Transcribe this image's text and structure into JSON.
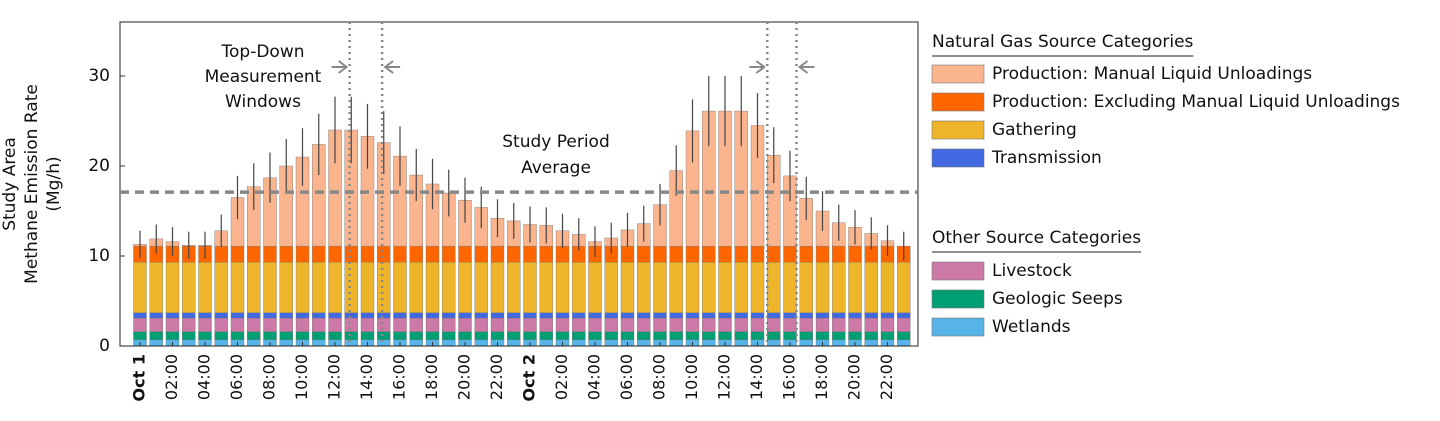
{
  "chart_data": {
    "type": "stacked_bar",
    "y_label": [
      "Study Area",
      "Methane Emission Rate",
      "(Mg/h)"
    ],
    "categories": [
      "Oct 1",
      null,
      "02:00",
      null,
      "04:00",
      null,
      "06:00",
      null,
      "08:00",
      null,
      "10:00",
      null,
      "12:00",
      null,
      "14:00",
      null,
      "16:00",
      null,
      "18:00",
      null,
      "20:00",
      null,
      "22:00",
      null,
      "Oct 2",
      null,
      "02:00",
      null,
      "04:00",
      null,
      "06:00",
      null,
      "08:00",
      null,
      "10:00",
      null,
      "12:00",
      null,
      "14:00",
      null,
      "16:00",
      null,
      "18:00",
      null,
      "20:00",
      null,
      "22:00",
      null
    ],
    "ylim": [
      0,
      36
    ],
    "yticks": [
      0,
      10,
      20,
      30
    ],
    "legend_groups": [
      "Natural Gas Source Categories",
      "Other Source Categories"
    ],
    "series": [
      {
        "name": "Production: Manual Liquid Unloadings",
        "color": "#fbb58e",
        "group": 0,
        "values": [
          0.2,
          0.8,
          0.5,
          0.1,
          0.1,
          1.7,
          5.4,
          6.6,
          7.6,
          8.9,
          9.9,
          11.3,
          12.9,
          12.9,
          12.2,
          11.5,
          10.0,
          7.9,
          6.9,
          5.9,
          5.1,
          4.3,
          3.1,
          2.8,
          2.4,
          2.3,
          1.7,
          1.3,
          0.5,
          0.9,
          1.8,
          2.5,
          4.6,
          8.4,
          12.8,
          15.0,
          15.0,
          15.0,
          13.4,
          10.1,
          7.8,
          5.3,
          3.9,
          2.6,
          2.1,
          1.4,
          0.6,
          0.0
        ],
        "errors": [
          1.5,
          1.6,
          1.6,
          1.5,
          1.5,
          1.8,
          2.4,
          2.6,
          2.8,
          3.0,
          3.2,
          3.4,
          3.7,
          3.7,
          3.6,
          3.5,
          3.3,
          2.9,
          2.8,
          2.6,
          2.5,
          2.3,
          2.1,
          2.0,
          2.0,
          2.0,
          1.9,
          1.8,
          1.7,
          1.7,
          1.9,
          2.0,
          2.3,
          2.8,
          3.5,
          3.9,
          3.9,
          3.9,
          3.6,
          3.1,
          2.8,
          2.4,
          2.2,
          2.0,
          1.9,
          1.8,
          1.7,
          1.6
        ]
      },
      {
        "name": "Production: Excluding Manual Liquid Unloadings",
        "color": "#ff6600",
        "group": 0,
        "values": [
          1.8,
          1.8,
          1.8,
          1.8,
          1.8,
          1.8,
          1.8,
          1.8,
          1.8,
          1.8,
          1.8,
          1.8,
          1.8,
          1.8,
          1.8,
          1.8,
          1.8,
          1.8,
          1.8,
          1.8,
          1.8,
          1.8,
          1.8,
          1.8,
          1.8,
          1.8,
          1.8,
          1.8,
          1.8,
          1.8,
          1.8,
          1.8,
          1.8,
          1.8,
          1.8,
          1.8,
          1.8,
          1.8,
          1.8,
          1.8,
          1.8,
          1.8,
          1.8,
          1.8,
          1.8,
          1.8,
          1.8,
          1.8
        ]
      },
      {
        "name": "Gathering",
        "color": "#efb52a",
        "group": 0,
        "values": [
          5.6,
          5.6,
          5.6,
          5.6,
          5.6,
          5.6,
          5.6,
          5.6,
          5.6,
          5.6,
          5.6,
          5.6,
          5.6,
          5.6,
          5.6,
          5.6,
          5.6,
          5.6,
          5.6,
          5.6,
          5.6,
          5.6,
          5.6,
          5.6,
          5.6,
          5.6,
          5.6,
          5.6,
          5.6,
          5.6,
          5.6,
          5.6,
          5.6,
          5.6,
          5.6,
          5.6,
          5.6,
          5.6,
          5.6,
          5.6,
          5.6,
          5.6,
          5.6,
          5.6,
          5.6,
          5.6,
          5.6,
          5.6
        ]
      },
      {
        "name": "Transmission",
        "color": "#4169e1",
        "group": 0,
        "values": [
          0.6,
          0.6,
          0.6,
          0.6,
          0.6,
          0.6,
          0.6,
          0.6,
          0.6,
          0.6,
          0.6,
          0.6,
          0.6,
          0.6,
          0.6,
          0.6,
          0.6,
          0.6,
          0.6,
          0.6,
          0.6,
          0.6,
          0.6,
          0.6,
          0.6,
          0.6,
          0.6,
          0.6,
          0.6,
          0.6,
          0.6,
          0.6,
          0.6,
          0.6,
          0.6,
          0.6,
          0.6,
          0.6,
          0.6,
          0.6,
          0.6,
          0.6,
          0.6,
          0.6,
          0.6,
          0.6,
          0.6,
          0.6
        ]
      },
      {
        "name": "Livestock",
        "color": "#cc79a7",
        "group": 1,
        "values": [
          1.5,
          1.5,
          1.5,
          1.5,
          1.5,
          1.5,
          1.5,
          1.5,
          1.5,
          1.5,
          1.5,
          1.5,
          1.5,
          1.5,
          1.5,
          1.5,
          1.5,
          1.5,
          1.5,
          1.5,
          1.5,
          1.5,
          1.5,
          1.5,
          1.5,
          1.5,
          1.5,
          1.5,
          1.5,
          1.5,
          1.5,
          1.5,
          1.5,
          1.5,
          1.5,
          1.5,
          1.5,
          1.5,
          1.5,
          1.5,
          1.5,
          1.5,
          1.5,
          1.5,
          1.5,
          1.5,
          1.5,
          1.5
        ]
      },
      {
        "name": "Geologic Seeps",
        "color": "#009e73",
        "group": 1,
        "values": [
          0.9,
          0.9,
          0.9,
          0.9,
          0.9,
          0.9,
          0.9,
          0.9,
          0.9,
          0.9,
          0.9,
          0.9,
          0.9,
          0.9,
          0.9,
          0.9,
          0.9,
          0.9,
          0.9,
          0.9,
          0.9,
          0.9,
          0.9,
          0.9,
          0.9,
          0.9,
          0.9,
          0.9,
          0.9,
          0.9,
          0.9,
          0.9,
          0.9,
          0.9,
          0.9,
          0.9,
          0.9,
          0.9,
          0.9,
          0.9,
          0.9,
          0.9,
          0.9,
          0.9,
          0.9,
          0.9,
          0.9,
          0.9
        ]
      },
      {
        "name": "Wetlands",
        "color": "#56b4e9",
        "group": 1,
        "values": [
          0.7,
          0.7,
          0.7,
          0.7,
          0.7,
          0.7,
          0.7,
          0.7,
          0.7,
          0.7,
          0.7,
          0.7,
          0.7,
          0.7,
          0.7,
          0.7,
          0.7,
          0.7,
          0.7,
          0.7,
          0.7,
          0.7,
          0.7,
          0.7,
          0.7,
          0.7,
          0.7,
          0.7,
          0.7,
          0.7,
          0.7,
          0.7,
          0.7,
          0.7,
          0.7,
          0.7,
          0.7,
          0.7,
          0.7,
          0.7,
          0.7,
          0.7,
          0.7,
          0.7,
          0.7,
          0.7,
          0.7,
          0.7
        ]
      }
    ],
    "average": {
      "value": 17.1,
      "label": [
        "Study Period",
        "Average"
      ]
    },
    "measurement_windows": {
      "label": [
        "Top-Down",
        "Measurement",
        "Windows"
      ],
      "windows": [
        [
          12.9,
          14.9
        ],
        [
          38.6,
          40.4
        ]
      ]
    }
  }
}
